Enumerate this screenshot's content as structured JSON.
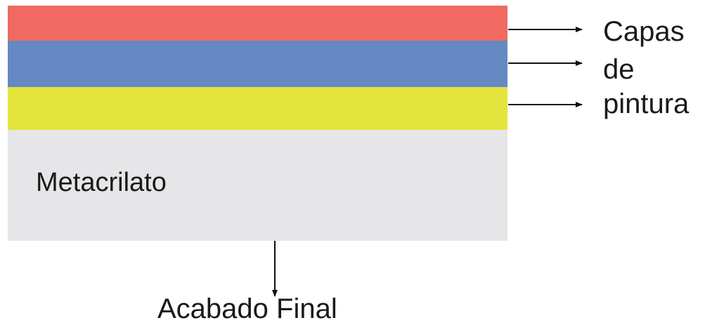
{
  "layers": {
    "paint_colors": [
      "#f06a62",
      "#6589c2",
      "#e5e43c"
    ],
    "base_color": "#e6e6e8",
    "base_label": "Metacrilato"
  },
  "side_label": {
    "line1": "Capas",
    "line2": "de",
    "line3": "pintura"
  },
  "bottom_label": "Acabado Final"
}
